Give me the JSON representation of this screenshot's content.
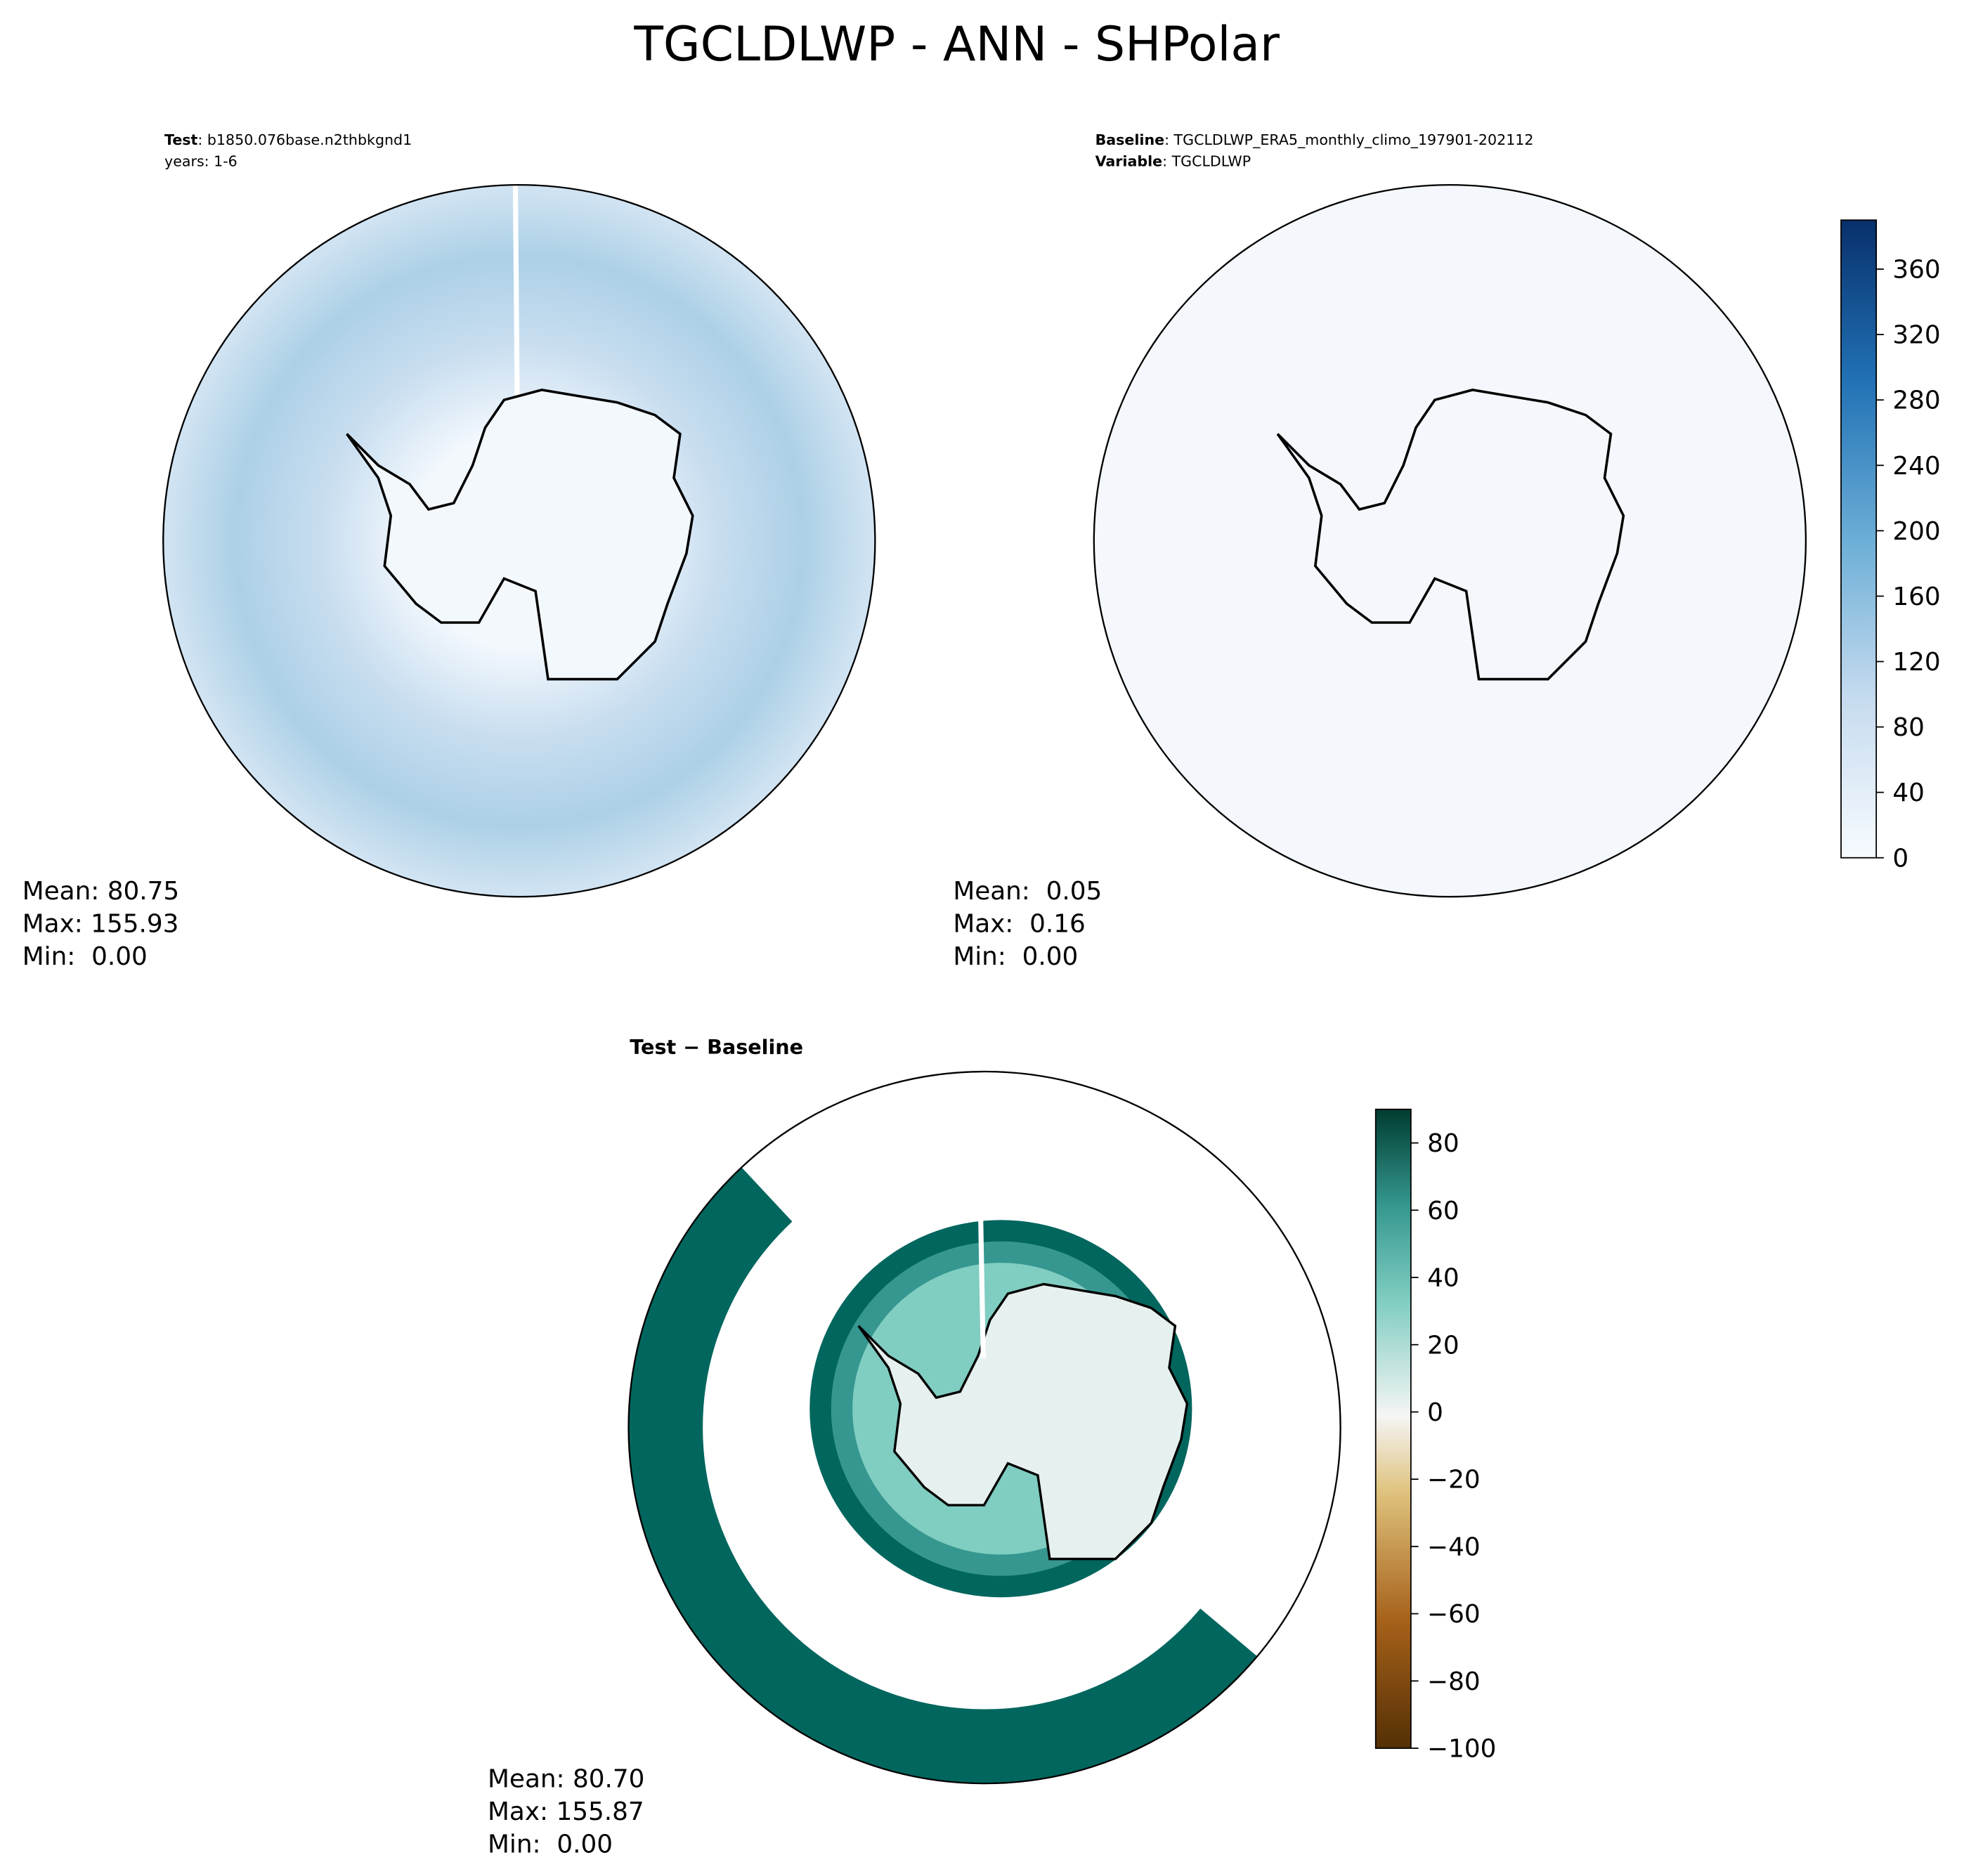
{
  "title": "TGCLDLWP - ANN - SHPolar",
  "panels": [
    {
      "header": [
        {
          "label": "Test",
          "value": ": b1850.076base.n2thbkgnd1"
        },
        {
          "value": "years: 1-6"
        }
      ],
      "stats": [
        "Mean: 80.75",
        "Max: 155.93",
        "Min:  0.00"
      ]
    },
    {
      "header": [
        {
          "label": "Baseline",
          "value": ": TGCLDLWP_ERA5_monthly_climo_197901-202112"
        },
        {
          "label": "Variable",
          "value": ": TGCLDLWP"
        }
      ],
      "stats": [
        "Mean:  0.05",
        "Max:  0.16",
        "Min:  0.00"
      ]
    },
    {
      "header": [
        {
          "label": "Test − Baseline"
        }
      ],
      "stats": [
        "Mean: 80.70",
        "Max: 155.87",
        "Min:  0.00"
      ]
    }
  ],
  "colorbars": [
    {
      "clim": [
        0,
        390
      ],
      "ticks": [
        0,
        40,
        80,
        120,
        160,
        200,
        240,
        280,
        320,
        360
      ]
    },
    {
      "clim": [
        -100,
        90
      ],
      "ticks": [
        {
          "value": -100,
          "label": "−100"
        },
        {
          "value": -80,
          "label": "−80"
        },
        {
          "value": -60,
          "label": "−60"
        },
        {
          "value": -40,
          "label": "−40"
        },
        {
          "value": -20,
          "label": "−20"
        },
        0,
        20,
        40,
        60,
        80
      ]
    }
  ]
}
